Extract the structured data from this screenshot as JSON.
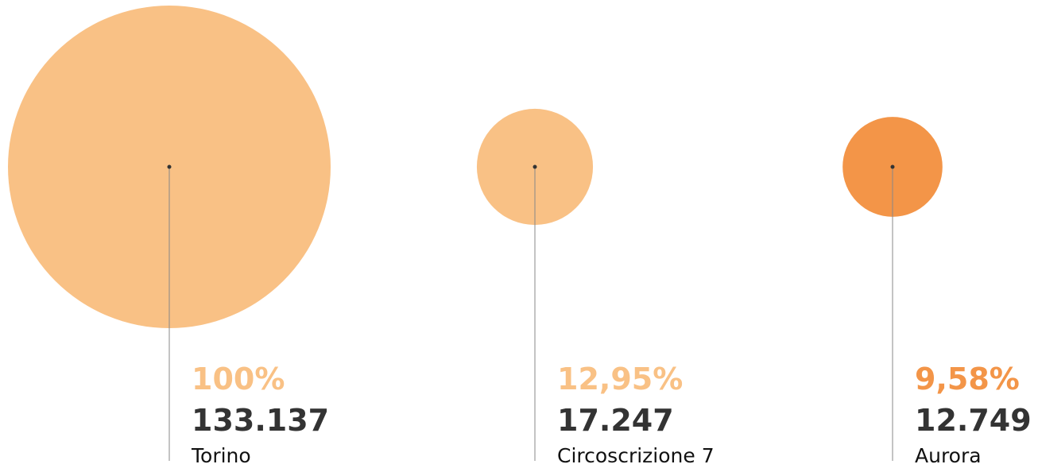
{
  "chart_data": {
    "type": "bubble",
    "categories": [
      "Torino",
      "Circoscrizione 7",
      "Aurora"
    ],
    "values": [
      133137,
      17247,
      12749
    ],
    "value_labels": [
      "133.137",
      "17.247",
      "12.749"
    ],
    "shares": [
      100,
      12.95,
      9.58
    ],
    "share_labels": [
      "100%",
      "12,95%",
      "9,58%"
    ],
    "colors": [
      "#f9c185",
      "#f9c185",
      "#f39548"
    ]
  }
}
